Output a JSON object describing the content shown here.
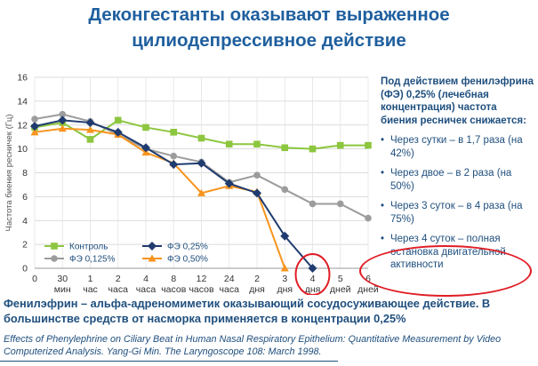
{
  "slide": {
    "title_line1": "Деконгестанты оказывают выраженное",
    "title_line2": "цилиодепрессивное действие"
  },
  "side_text": {
    "intro": "Под действием фенилэфрина (ФЭ) 0,25% (лечебная концентрация) частота биения ресничек снижается:",
    "bullets": [
      "Через сутки – в 1,7 раза (на 42%)",
      "Через двое – в 2 раза (на 50%)",
      "Через 3 суток – в 4 раза (на 75%)",
      "Через 4 суток – полная остановка двигательной активности"
    ]
  },
  "footer": {
    "main": "Фенилэфрин – альфа-адреномиметик оказывающий сосудосуживающее действие. В большинстве средств от насморка применяется в концентрации 0,25%",
    "citation": "Effects of Phenylephrine on Ciliary Beat in Human Nasal Respiratory Epithelium: Quantitative Measurement by Video Computerized Analysis. Yang-Gi Min. The Laryngoscope 108: March 1998."
  },
  "chart_data": {
    "type": "line",
    "ylabel": "Частота биения ресничек (Гц)",
    "xlabel": "",
    "ylim": [
      0,
      16
    ],
    "yticks": [
      0,
      2,
      4,
      6,
      8,
      10,
      12,
      14,
      16
    ],
    "grid": true,
    "legend_position": "bottom-left",
    "categories": [
      {
        "top": "0",
        "bottom": ""
      },
      {
        "top": "30",
        "bottom": "мин"
      },
      {
        "top": "1",
        "bottom": "час"
      },
      {
        "top": "2",
        "bottom": "часа"
      },
      {
        "top": "4",
        "bottom": "часа"
      },
      {
        "top": "8",
        "bottom": "часов"
      },
      {
        "top": "12",
        "bottom": "часов"
      },
      {
        "top": "24",
        "bottom": "часа"
      },
      {
        "top": "2",
        "bottom": "дня"
      },
      {
        "top": "3",
        "bottom": "дня"
      },
      {
        "top": "4",
        "bottom": "дня"
      },
      {
        "top": "5",
        "bottom": "дней"
      },
      {
        "top": "6",
        "bottom": "дней"
      }
    ],
    "series": [
      {
        "name": "Контроль",
        "color": "#8dc63f",
        "marker": "square",
        "values": [
          11.8,
          12.2,
          10.8,
          12.4,
          11.8,
          11.4,
          10.9,
          10.4,
          10.4,
          10.1,
          10.0,
          10.3,
          10.3
        ]
      },
      {
        "name": "ФЭ 0,25%",
        "color": "#1f3b6f",
        "marker": "diamond",
        "values": [
          11.9,
          12.4,
          12.2,
          11.4,
          10.1,
          8.7,
          8.8,
          7.1,
          6.3,
          2.7,
          0,
          null,
          null
        ]
      },
      {
        "name": "ФЭ 0,125%",
        "color": "#9c9c9c",
        "marker": "circle",
        "values": [
          12.5,
          12.9,
          12.3,
          11.2,
          10.0,
          9.4,
          8.9,
          7.2,
          7.8,
          6.6,
          5.4,
          5.4,
          4.2
        ]
      },
      {
        "name": "ФЭ 0,50%",
        "color": "#f7941d",
        "marker": "triangle",
        "values": [
          11.4,
          11.7,
          11.6,
          11.2,
          9.7,
          8.8,
          6.3,
          6.9,
          6.4,
          0,
          null,
          null,
          null
        ]
      }
    ],
    "highlight_color": "#e01d25"
  }
}
